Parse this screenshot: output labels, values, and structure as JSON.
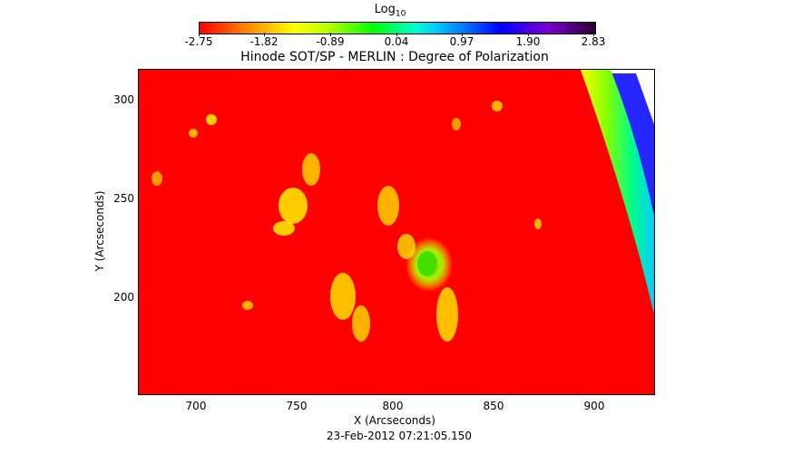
{
  "colorbar": {
    "title": "Log",
    "title_sub": "10",
    "ticks": [
      "-2.75",
      "-1.82",
      "-0.89",
      "0.04",
      "0.97",
      "1.90",
      "2.83"
    ]
  },
  "plot": {
    "title": "Hinode SOT/SP - MERLIN : Degree of Polarization",
    "x_ticks": [
      "700",
      "750",
      "800",
      "850",
      "900"
    ],
    "y_ticks": [
      "300",
      "250",
      "200"
    ],
    "xlabel": "X (Arcseconds)",
    "ylabel": "Y (Arcseconds)",
    "timestamp": "23-Feb-2012 07:21:05.150"
  },
  "colors": {
    "background_field": "#ff0000",
    "active_region": "#ffff00",
    "spot_core": "#66e000",
    "limb": "#00ff66",
    "off_limb": "#0000ff"
  }
}
